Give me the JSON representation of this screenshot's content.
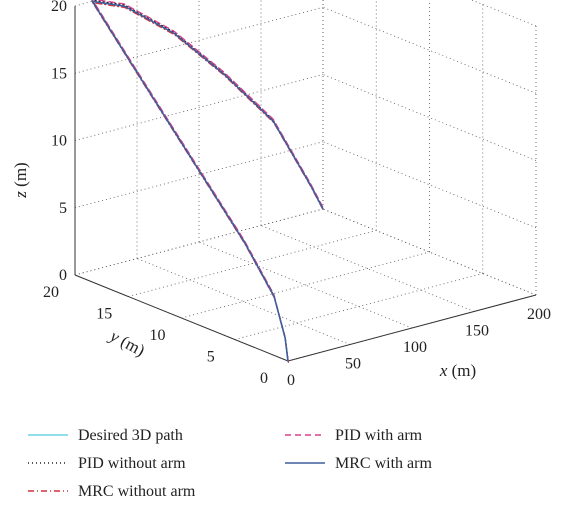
{
  "chart_data": {
    "type": "line3d",
    "xlabel": "x (m)",
    "ylabel": "y (m)",
    "zlabel": "z (m)",
    "xlabel_italic": "x",
    "ylabel_italic": "y",
    "zlabel_italic": "z",
    "unit_text": "(m)",
    "xlim": [
      0,
      200
    ],
    "ylim": [
      0,
      20
    ],
    "zlim": [
      0,
      20
    ],
    "xticks": [
      0,
      50,
      100,
      150,
      200
    ],
    "yticks": [
      0,
      5,
      10,
      15,
      20
    ],
    "zticks": [
      0,
      5,
      10,
      15,
      20
    ],
    "grid": true,
    "legend_placement": "bottom",
    "path": {
      "x": [
        0,
        2,
        6,
        8,
        6,
        4,
        14,
        40,
        80,
        120,
        160,
        190,
        200
      ],
      "y": [
        0,
        0.5,
        2,
        5,
        10,
        15,
        20,
        20,
        20,
        20,
        20,
        20,
        20
      ],
      "z": [
        0,
        1.5,
        4,
        7,
        12,
        17,
        20,
        19,
        16,
        12,
        7.5,
        2,
        0
      ]
    },
    "series": [
      {
        "name": "Desired 3D path",
        "color": "#6fd3e0",
        "style": "solid",
        "offset": [
          0,
          0,
          0
        ]
      },
      {
        "name": "PID without arm",
        "color": "#222222",
        "style": "dotted",
        "offset": [
          0.6,
          0.1,
          0.05
        ]
      },
      {
        "name": "MRC without arm",
        "color": "#d0303a",
        "style": "dashdot",
        "offset": [
          -0.6,
          -0.1,
          -0.05
        ]
      },
      {
        "name": "PID with arm",
        "color": "#d6408a",
        "style": "dashed",
        "offset": [
          1.0,
          0.15,
          0.1
        ]
      },
      {
        "name": "MRC with arm",
        "color": "#3e5e9c",
        "style": "solid",
        "offset": [
          0,
          0,
          0
        ]
      }
    ]
  }
}
